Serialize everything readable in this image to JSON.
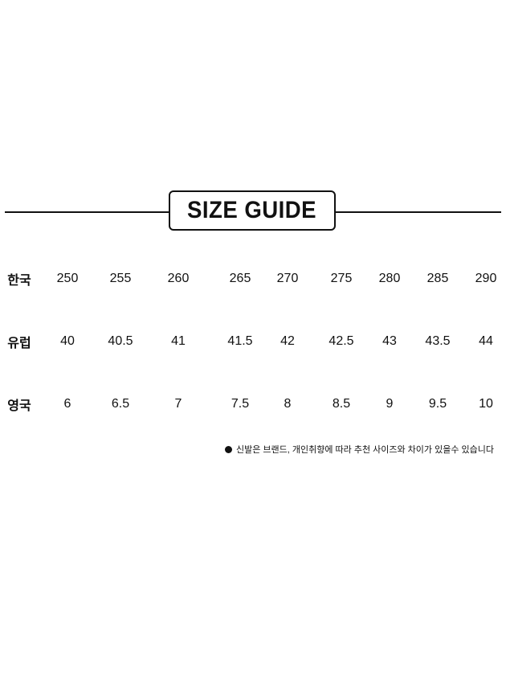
{
  "title": "SIZE GUIDE",
  "rows": [
    {
      "label": "한국",
      "values": [
        "250",
        "255",
        "260",
        "265",
        "270",
        "275",
        "280",
        "285",
        "290"
      ]
    },
    {
      "label": "유럽",
      "values": [
        "40",
        "40.5",
        "41",
        "41.5",
        "42",
        "42.5",
        "43",
        "43.5",
        "44"
      ]
    },
    {
      "label": "영국",
      "values": [
        "6",
        "6.5",
        "7",
        "7.5",
        "8",
        "8.5",
        "9",
        "9.5",
        "10"
      ]
    }
  ],
  "note": "신발은 브랜드, 개인취향에 따라 추천 사이즈와 차이가 있을수 있습니다"
}
